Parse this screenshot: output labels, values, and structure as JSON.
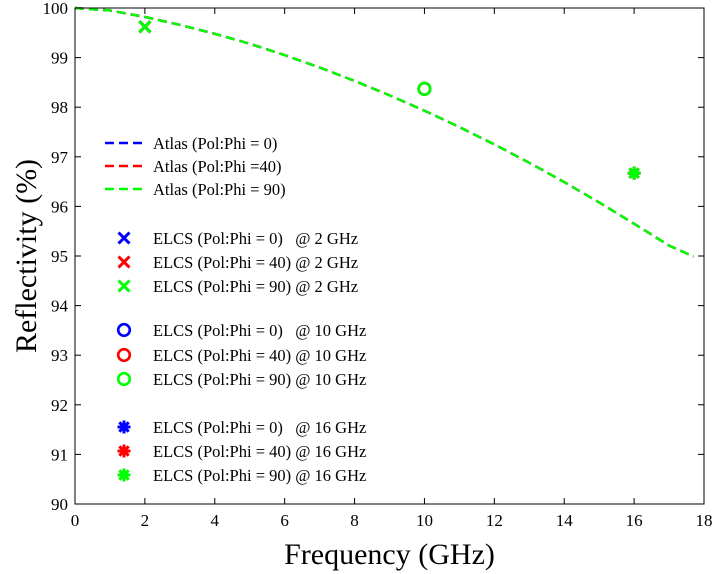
{
  "chart_data": {
    "type": "line",
    "xlabel": "Frequency (GHz)",
    "ylabel": "Reflectivity (%)",
    "xlim": [
      0,
      18
    ],
    "ylim": [
      90,
      100
    ],
    "xticks": [
      0,
      2,
      4,
      6,
      8,
      10,
      12,
      14,
      16,
      18
    ],
    "yticks": [
      90,
      91,
      92,
      93,
      94,
      95,
      96,
      97,
      98,
      99,
      100
    ],
    "grid": false,
    "legend_position": "left",
    "series": [
      {
        "name": "Atlas (Pol:Phi = 0)",
        "style": "dashed-line",
        "color": "#0000ff",
        "x": [
          0,
          1,
          2,
          3,
          4,
          5,
          6,
          7,
          8,
          9,
          10,
          11,
          12,
          13,
          14,
          15,
          16,
          17,
          17.7
        ],
        "y": [
          100,
          99.95,
          99.82,
          99.66,
          99.48,
          99.28,
          99.05,
          98.8,
          98.53,
          98.24,
          97.93,
          97.6,
          97.25,
          96.88,
          96.49,
          96.08,
          95.65,
          95.21,
          94.99
        ]
      },
      {
        "name": "Atlas (Pol:Phi =40)",
        "style": "dashed-line",
        "color": "#ff0000",
        "x": [
          0,
          1,
          2,
          3,
          4,
          5,
          6,
          7,
          8,
          9,
          10,
          11,
          12,
          13,
          14,
          15,
          16,
          17,
          17.7
        ],
        "y": [
          100,
          99.95,
          99.82,
          99.66,
          99.48,
          99.28,
          99.05,
          98.8,
          98.53,
          98.24,
          97.93,
          97.6,
          97.25,
          96.88,
          96.49,
          96.08,
          95.65,
          95.21,
          94.99
        ]
      },
      {
        "name": "Atlas (Pol:Phi = 90)",
        "style": "dashed-line",
        "color": "#00ff00",
        "x": [
          0,
          1,
          2,
          3,
          4,
          5,
          6,
          7,
          8,
          9,
          10,
          11,
          12,
          13,
          14,
          15,
          16,
          17,
          17.7
        ],
        "y": [
          100,
          99.95,
          99.82,
          99.66,
          99.48,
          99.28,
          99.05,
          98.8,
          98.53,
          98.24,
          97.93,
          97.6,
          97.25,
          96.88,
          96.49,
          96.08,
          95.65,
          95.21,
          94.99
        ]
      },
      {
        "name": "ELCS (Pol:Phi = 0)   @ 2 GHz",
        "style": "marker",
        "marker": "x",
        "color": "#0000ff",
        "x": [
          2
        ],
        "y": [
          99.62
        ]
      },
      {
        "name": "ELCS (Pol:Phi = 40) @ 2 GHz",
        "style": "marker",
        "marker": "x",
        "color": "#ff0000",
        "x": [
          2
        ],
        "y": [
          99.62
        ]
      },
      {
        "name": "ELCS (Pol:Phi = 90) @ 2 GHz",
        "style": "marker",
        "marker": "x",
        "color": "#00ff00",
        "x": [
          2
        ],
        "y": [
          99.62
        ]
      },
      {
        "name": "ELCS (Pol:Phi = 0)   @ 10 GHz",
        "style": "marker",
        "marker": "o",
        "color": "#0000ff",
        "x": [
          10
        ],
        "y": [
          98.37
        ]
      },
      {
        "name": "ELCS (Pol:Phi = 40) @ 10 GHz",
        "style": "marker",
        "marker": "o",
        "color": "#ff0000",
        "x": [
          10
        ],
        "y": [
          98.37
        ]
      },
      {
        "name": "ELCS (Pol:Phi = 90) @ 10 GHz",
        "style": "marker",
        "marker": "o",
        "color": "#00ff00",
        "x": [
          10
        ],
        "y": [
          98.37
        ]
      },
      {
        "name": "ELCS (Pol:Phi = 0)   @ 16 GHz",
        "style": "marker",
        "marker": "asterisk",
        "color": "#0000ff",
        "x": [
          16
        ],
        "y": [
          96.67
        ]
      },
      {
        "name": "ELCS (Pol:Phi = 40) @ 16 GHz",
        "style": "marker",
        "marker": "asterisk",
        "color": "#ff0000",
        "x": [
          16
        ],
        "y": [
          96.67
        ]
      },
      {
        "name": "ELCS (Pol:Phi = 90) @ 16 GHz",
        "style": "marker",
        "marker": "asterisk",
        "color": "#00ff00",
        "x": [
          16
        ],
        "y": [
          96.67
        ]
      }
    ]
  }
}
